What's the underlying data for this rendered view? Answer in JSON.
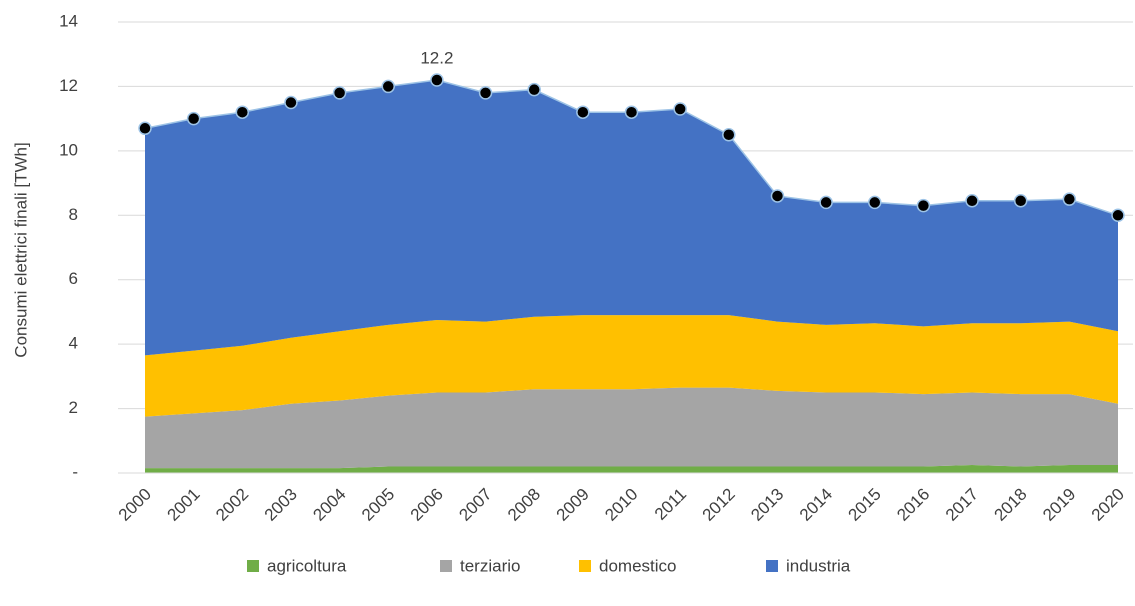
{
  "chart_data": {
    "type": "stacked_area",
    "y_label": "Consumi elettrici finali [TWh]",
    "categories": [
      "2000",
      "2001",
      "2002",
      "2003",
      "2004",
      "2005",
      "2006",
      "2007",
      "2008",
      "2009",
      "2010",
      "2011",
      "2012",
      "2013",
      "2014",
      "2015",
      "2016",
      "2017",
      "2018",
      "2019",
      "2020"
    ],
    "series": [
      {
        "name": "agricoltura",
        "color": "#70ad47",
        "values": [
          0.15,
          0.15,
          0.15,
          0.15,
          0.15,
          0.2,
          0.2,
          0.2,
          0.2,
          0.2,
          0.2,
          0.2,
          0.2,
          0.2,
          0.2,
          0.2,
          0.2,
          0.25,
          0.2,
          0.25,
          0.25
        ]
      },
      {
        "name": "terziario",
        "color": "#a5a5a5",
        "values": [
          1.6,
          1.7,
          1.8,
          2.0,
          2.1,
          2.2,
          2.3,
          2.3,
          2.4,
          2.4,
          2.4,
          2.45,
          2.45,
          2.35,
          2.3,
          2.3,
          2.25,
          2.25,
          2.25,
          2.2,
          1.9
        ]
      },
      {
        "name": "domestico",
        "color": "#ffc000",
        "values": [
          1.9,
          1.95,
          2.0,
          2.05,
          2.15,
          2.2,
          2.25,
          2.2,
          2.25,
          2.3,
          2.3,
          2.25,
          2.25,
          2.15,
          2.1,
          2.15,
          2.1,
          2.15,
          2.2,
          2.25,
          2.25
        ]
      },
      {
        "name": "industria",
        "color": "#4472c4",
        "values": [
          7.05,
          7.2,
          7.25,
          7.3,
          7.4,
          7.4,
          7.45,
          7.1,
          7.05,
          6.3,
          6.3,
          6.4,
          5.6,
          3.9,
          3.8,
          3.75,
          3.75,
          3.8,
          3.8,
          3.8,
          3.6
        ]
      }
    ],
    "annotations": [
      {
        "category": "2006",
        "label": "12.2"
      }
    ],
    "ylim": [
      0,
      14
    ],
    "yticks": [
      {
        "value": 0,
        "label": "-"
      },
      2,
      4,
      6,
      8,
      10,
      12,
      14
    ],
    "grid": true,
    "markers": true,
    "legend": "bottom"
  }
}
